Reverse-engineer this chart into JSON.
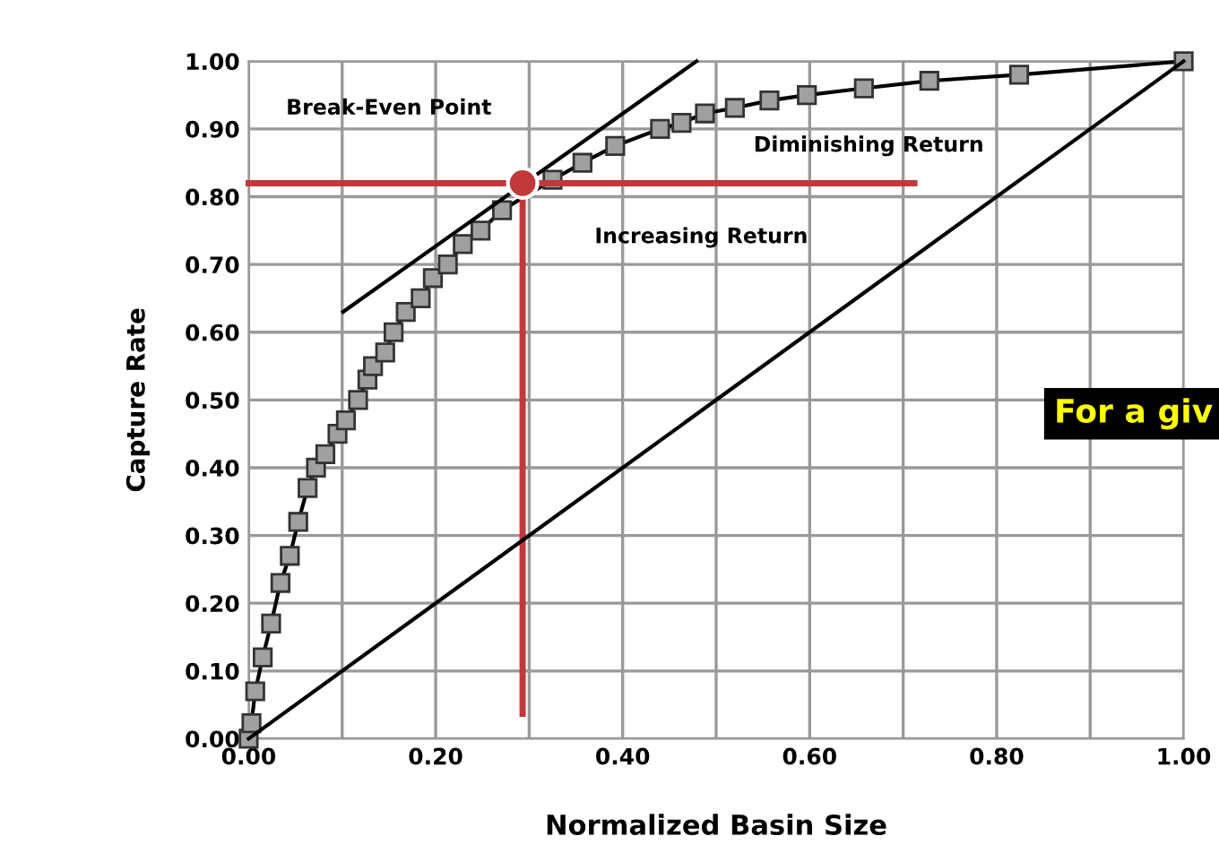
{
  "chart_data": {
    "type": "line",
    "xlabel": "Normalized Basin Size",
    "ylabel": "Capture Rate",
    "annotations": [
      "Break-Even Point",
      "Diminishing Return",
      "Increasing Return",
      "For a giv"
    ],
    "xlim": [
      0,
      1
    ],
    "ylim": [
      0,
      1
    ],
    "xticks": [
      {
        "value": 0,
        "label": "0.00"
      },
      {
        "value": 0.1,
        "label": null
      },
      {
        "value": 0.2,
        "label": "0.20"
      },
      {
        "value": 0.3,
        "label": null
      },
      {
        "value": 0.4,
        "label": "0.40"
      },
      {
        "value": 0.5,
        "label": null
      },
      {
        "value": 0.6,
        "label": "0.60"
      },
      {
        "value": 0.7,
        "label": null
      },
      {
        "value": 0.8,
        "label": "0.80"
      },
      {
        "value": 0.9,
        "label": null
      },
      {
        "value": 1,
        "label": "1.00"
      }
    ],
    "yticks": [
      {
        "value": 0,
        "label": "0.00"
      },
      {
        "value": 0.1,
        "label": "0.10"
      },
      {
        "value": 0.2,
        "label": "0.20"
      },
      {
        "value": 0.3,
        "label": "0.30"
      },
      {
        "value": 0.4,
        "label": "0.40"
      },
      {
        "value": 0.5,
        "label": "0.50"
      },
      {
        "value": 0.6,
        "label": "0.60"
      },
      {
        "value": 0.7,
        "label": "0.70"
      },
      {
        "value": 0.8,
        "label": "0.80"
      },
      {
        "value": 0.9,
        "label": "0.90"
      },
      {
        "value": 1,
        "label": "1.00"
      }
    ],
    "grid": true,
    "series": [
      {
        "color": "#000000",
        "x": [
          0.101,
          0.479
        ],
        "values": [
          0.63,
          1.0
        ]
      },
      {
        "color": "#c0393b",
        "x": [
          0,
          0.712
        ],
        "values": [
          0.82,
          0.82
        ]
      },
      {
        "color": "#c0393b",
        "x": [
          0.293,
          0.293
        ],
        "values": [
          0.82,
          0.037
        ]
      },
      {
        "color": "#000000",
        "marker": "square",
        "x": [
          0,
          0.003,
          0.007,
          0.015,
          0.024,
          0.034,
          0.044,
          0.053,
          0.063,
          0.072,
          0.082,
          0.095,
          0.104,
          0.117,
          0.127,
          0.133,
          0.146,
          0.155,
          0.168,
          0.184,
          0.197,
          0.213,
          0.229,
          0.248,
          0.271,
          0.325,
          0.357,
          0.392,
          0.44,
          0.463,
          0.488,
          0.52,
          0.557,
          0.597,
          0.658,
          0.728,
          0.824,
          1.0
        ],
        "values": [
          0,
          0.023,
          0.07,
          0.12,
          0.17,
          0.23,
          0.27,
          0.32,
          0.37,
          0.4,
          0.42,
          0.45,
          0.47,
          0.5,
          0.53,
          0.55,
          0.57,
          0.6,
          0.63,
          0.65,
          0.68,
          0.7,
          0.73,
          0.75,
          0.78,
          0.825,
          0.85,
          0.875,
          0.9,
          0.909,
          0.923,
          0.931,
          0.942,
          0.95,
          0.96,
          0.971,
          0.98,
          1.0
        ]
      },
      {
        "color": "#000000",
        "x": [
          0,
          1
        ],
        "values": [
          0,
          1
        ]
      },
      {
        "type": "scatter",
        "color": "#c0393b",
        "marker": "circle",
        "x": [
          0.293
        ],
        "values": [
          0.82
        ]
      }
    ]
  }
}
